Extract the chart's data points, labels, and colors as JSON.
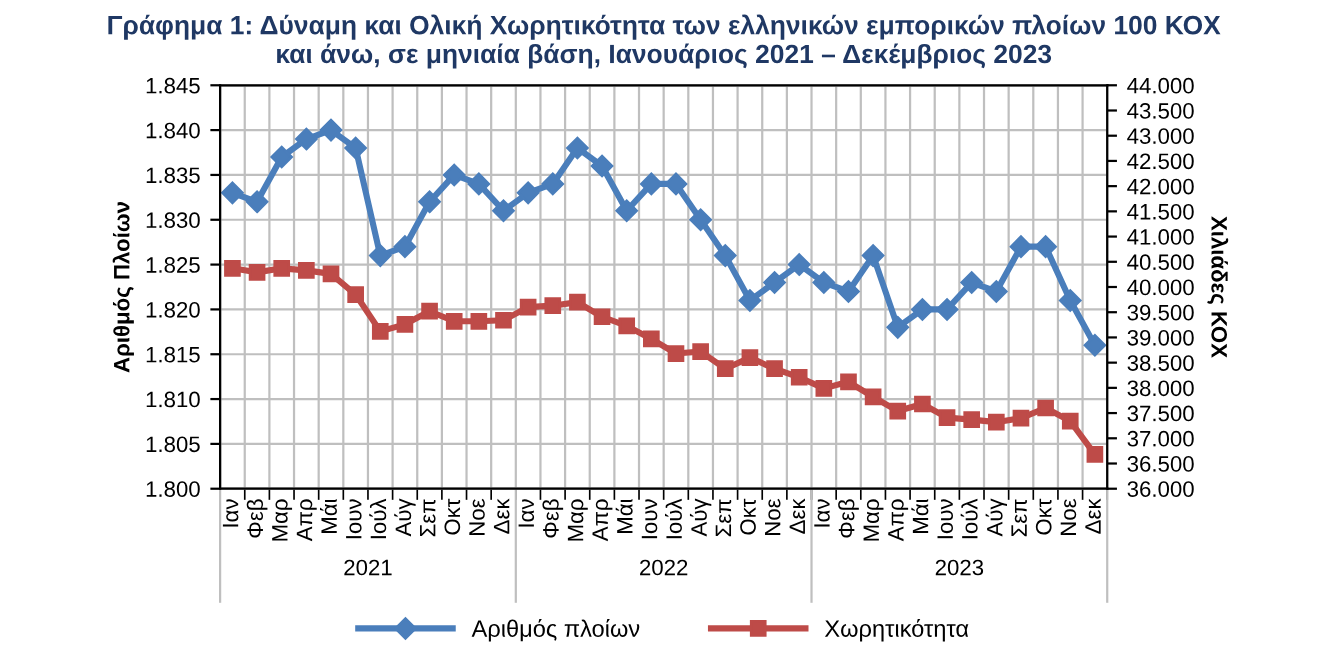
{
  "chart_data": {
    "type": "line",
    "title": "Γράφημα 1: Δύναμη και Ολική Χωρητικότητα των ελληνικών εμπορικών πλοίων 100 ΚΟΧ\nκαι άνω, σε μηνιαία βάση, Ιανουάριος 2021 – Δεκέμβριος 2023",
    "ylabel": "Αριθμός Πλοίων",
    "y2label": "Χιλιάδες ΚΟΧ",
    "categories": [
      "Ιαν",
      "Φεβ",
      "Μαρ",
      "Απρ",
      "Μάι",
      "Ιουν",
      "Ιούλ",
      "Αύγ",
      "Σεπ",
      "Οκτ",
      "Νοε",
      "Δεκ",
      "Ιαν",
      "Φεβ",
      "Μαρ",
      "Απρ",
      "Μάι",
      "Ιουν",
      "Ιούλ",
      "Αύγ",
      "Σεπ",
      "Οκτ",
      "Νοε",
      "Δεκ",
      "Ιαν",
      "Φεβ",
      "Μαρ",
      "Απρ",
      "Μάι",
      "Ιουν",
      "Ιούλ",
      "Αύγ",
      "Σεπ",
      "Οκτ",
      "Νοε",
      "Δεκ"
    ],
    "annotations": [
      "2021",
      "2022",
      "2023"
    ],
    "series": [
      {
        "name": "Αριθμός πλοίων",
        "color": "#4a7ebb",
        "marker": "diamond",
        "values": [
          1833,
          1832,
          1837,
          1839,
          1840,
          1838,
          1826,
          1827,
          1832,
          1835,
          1834,
          1831,
          1833,
          1834,
          1838,
          1836,
          1831,
          1834,
          1834,
          1830,
          1826,
          1821,
          1823,
          1825,
          1823,
          1822,
          1826,
          1818,
          1820,
          1820,
          1823,
          1822,
          1827,
          1827,
          1821,
          1816
        ]
      },
      {
        "name": "Χωρητικότητα",
        "color": "#be4b48",
        "marker": "square",
        "axis": "y2",
        "values": [
          40370,
          40290,
          40370,
          40330,
          40260,
          39850,
          39120,
          39260,
          39520,
          39320,
          39320,
          39340,
          39600,
          39630,
          39700,
          39410,
          39230,
          38970,
          38680,
          38720,
          38380,
          38600,
          38380,
          38210,
          37990,
          38120,
          37820,
          37540,
          37680,
          37410,
          37370,
          37320,
          37400,
          37600,
          37340,
          36680
        ]
      }
    ],
    "ylim": [
      1800,
      1845
    ],
    "yticks": [
      {
        "value": 1800,
        "label": "1.800"
      },
      {
        "value": 1805,
        "label": "1.805"
      },
      {
        "value": 1810,
        "label": "1.810"
      },
      {
        "value": 1815,
        "label": "1.815"
      },
      {
        "value": 1820,
        "label": "1.820"
      },
      {
        "value": 1825,
        "label": "1.825"
      },
      {
        "value": 1830,
        "label": "1.830"
      },
      {
        "value": 1835,
        "label": "1.835"
      },
      {
        "value": 1840,
        "label": "1.840"
      },
      {
        "value": 1845,
        "label": "1.845"
      }
    ],
    "y2lim": [
      36000,
      44000
    ],
    "y2ticks": [
      {
        "value": 36000,
        "label": "36.000"
      },
      {
        "value": 36500,
        "label": "36.500"
      },
      {
        "value": 37000,
        "label": "37.000"
      },
      {
        "value": 37500,
        "label": "37.500"
      },
      {
        "value": 38000,
        "label": "38.000"
      },
      {
        "value": 38500,
        "label": "38.500"
      },
      {
        "value": 39000,
        "label": "39.000"
      },
      {
        "value": 39500,
        "label": "39.500"
      },
      {
        "value": 40000,
        "label": "40.000"
      },
      {
        "value": 40500,
        "label": "40.500"
      },
      {
        "value": 41000,
        "label": "41.000"
      },
      {
        "value": 41500,
        "label": "41.500"
      },
      {
        "value": 42000,
        "label": "42.000"
      },
      {
        "value": 42500,
        "label": "42.500"
      },
      {
        "value": 43000,
        "label": "43.000"
      },
      {
        "value": 43500,
        "label": "43.500"
      },
      {
        "value": 44000,
        "label": "44.000"
      }
    ],
    "grid": true,
    "legend": "bottom",
    "line_style": "solid"
  }
}
